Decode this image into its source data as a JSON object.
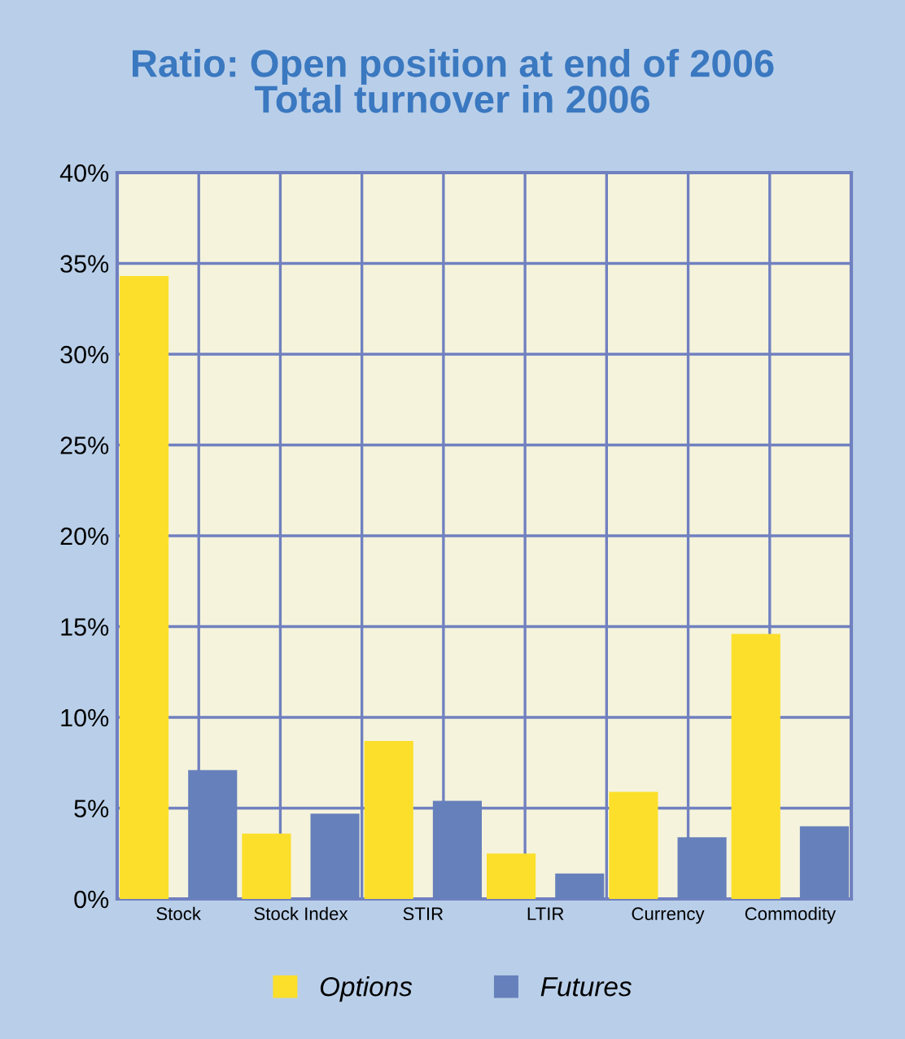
{
  "chart_data": {
    "type": "bar",
    "title": "Ratio: Open position at end of 2006\nTotal turnover in 2006",
    "categories": [
      "Stock",
      "Stock Index",
      "STIR",
      "LTIR",
      "Currency",
      "Commodity"
    ],
    "series": [
      {
        "name": "Options",
        "color": "#fcdf2a",
        "values": [
          34.3,
          3.6,
          8.7,
          2.5,
          5.9,
          14.6
        ]
      },
      {
        "name": "Futures",
        "color": "#6680bb",
        "values": [
          7.1,
          4.7,
          5.4,
          1.4,
          3.4,
          4.0
        ]
      }
    ],
    "ylim": [
      0,
      40
    ],
    "yticks": [
      {
        "value": 0,
        "label": "0%"
      },
      {
        "value": 5,
        "label": "5%"
      },
      {
        "value": 10,
        "label": "10%"
      },
      {
        "value": 15,
        "label": "15%"
      },
      {
        "value": 20,
        "label": "20%"
      },
      {
        "value": 25,
        "label": "25%"
      },
      {
        "value": 30,
        "label": "30%"
      },
      {
        "value": 35,
        "label": "35%"
      },
      {
        "value": 40,
        "label": "40%"
      }
    ],
    "grid": true,
    "legend": "bottom"
  }
}
